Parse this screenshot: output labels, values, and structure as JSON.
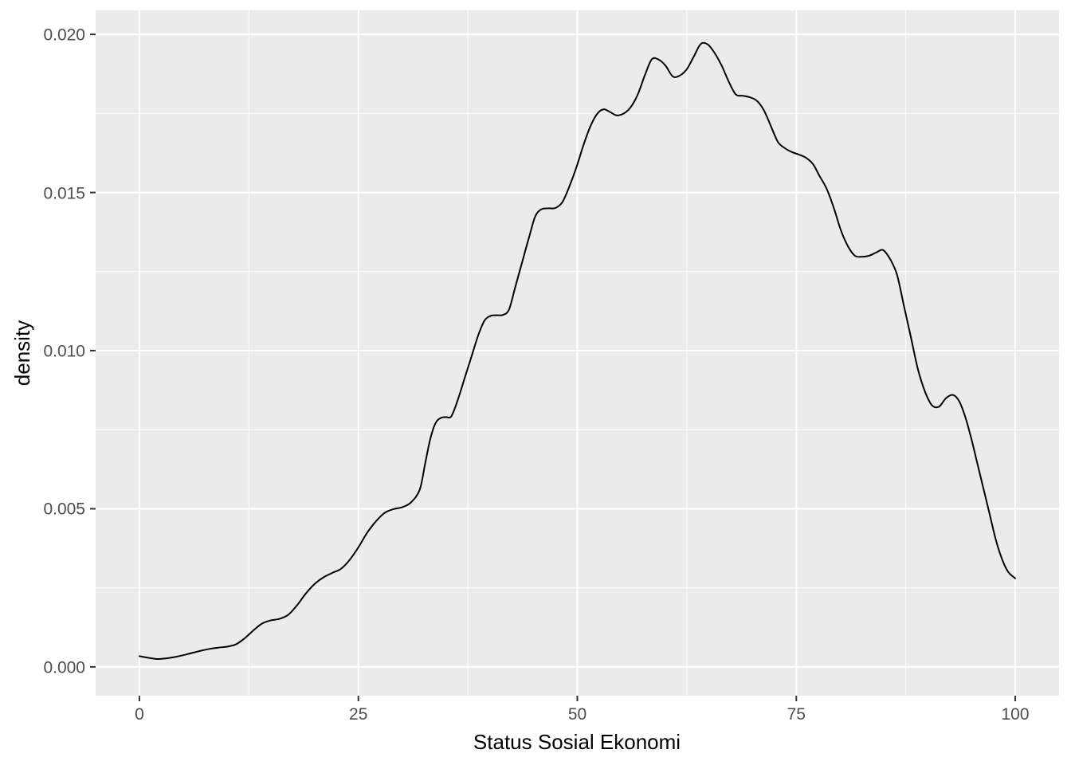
{
  "figure": {
    "xlabel": "Status Sosial Ekonomi",
    "ylabel": "density"
  },
  "chart_data": {
    "type": "line",
    "title": "",
    "xlabel": "Status Sosial Ekonomi",
    "ylabel": "density",
    "legend": "none",
    "grid": "major+minor",
    "xlim": [
      -5,
      105
    ],
    "ylim": [
      -0.00091,
      0.02076
    ],
    "x_ticks": [
      0,
      25,
      50,
      75,
      100
    ],
    "x_tick_labels": [
      "0",
      "25",
      "50",
      "75",
      "100"
    ],
    "x_minor_ticks": [
      12.5,
      37.5,
      62.5,
      87.5
    ],
    "y_ticks": [
      0,
      0.005,
      0.01,
      0.015,
      0.02
    ],
    "y_tick_labels": [
      "0.000",
      "0.005",
      "0.010",
      "0.015",
      "0.020"
    ],
    "y_minor_ticks": [
      0.0025,
      0.0075,
      0.0125,
      0.0175
    ],
    "style": {
      "panel_bg": "#EBEBEB",
      "grid_color": "#FFFFFF",
      "line_color": "#000000",
      "tick_label_color": "#4D4D4D",
      "axis_title_color": "#000000",
      "tick_mark_color": "#333333",
      "outer_bg": "#FFFFFF"
    },
    "points": [
      [
        0,
        0.00034
      ],
      [
        1,
        0.00029
      ],
      [
        2,
        0.00025
      ],
      [
        3,
        0.00027
      ],
      [
        4,
        0.00031
      ],
      [
        5,
        0.00037
      ],
      [
        6,
        0.00044
      ],
      [
        7,
        0.00051
      ],
      [
        8,
        0.00057
      ],
      [
        9,
        0.00061
      ],
      [
        10,
        0.00064
      ],
      [
        11,
        0.00071
      ],
      [
        12,
        0.0009
      ],
      [
        13,
        0.00115
      ],
      [
        14,
        0.00137
      ],
      [
        15,
        0.00147
      ],
      [
        16,
        0.00152
      ],
      [
        17,
        0.00165
      ],
      [
        18,
        0.00195
      ],
      [
        19,
        0.00232
      ],
      [
        20,
        0.00262
      ],
      [
        21,
        0.00283
      ],
      [
        22,
        0.00297
      ],
      [
        23,
        0.0031
      ],
      [
        24,
        0.00338
      ],
      [
        25,
        0.00378
      ],
      [
        26,
        0.00424
      ],
      [
        27,
        0.0046
      ],
      [
        28,
        0.00487
      ],
      [
        29,
        0.00499
      ],
      [
        30,
        0.00505
      ],
      [
        31,
        0.0052
      ],
      [
        32,
        0.0056
      ],
      [
        32.6,
        0.0064
      ],
      [
        33.2,
        0.0072
      ],
      [
        33.8,
        0.0077
      ],
      [
        34.4,
        0.00787
      ],
      [
        35,
        0.0079
      ],
      [
        35.6,
        0.00792
      ],
      [
        36.3,
        0.0084
      ],
      [
        37.1,
        0.0091
      ],
      [
        37.9,
        0.0098
      ],
      [
        38.7,
        0.0105
      ],
      [
        39.4,
        0.01095
      ],
      [
        40.1,
        0.0111
      ],
      [
        40.8,
        0.01112
      ],
      [
        41.5,
        0.01113
      ],
      [
        42.2,
        0.0113
      ],
      [
        42.9,
        0.012
      ],
      [
        43.7,
        0.0128
      ],
      [
        44.5,
        0.0136
      ],
      [
        45.2,
        0.01425
      ],
      [
        45.9,
        0.01447
      ],
      [
        46.7,
        0.0145
      ],
      [
        47.5,
        0.01451
      ],
      [
        48.3,
        0.0147
      ],
      [
        49.1,
        0.0152
      ],
      [
        49.9,
        0.0158
      ],
      [
        50.7,
        0.0165
      ],
      [
        51.5,
        0.0171
      ],
      [
        52.3,
        0.0175
      ],
      [
        53,
        0.01763
      ],
      [
        53.7,
        0.01755
      ],
      [
        54.5,
        0.01744
      ],
      [
        55.3,
        0.0175
      ],
      [
        56.1,
        0.0177
      ],
      [
        56.9,
        0.0181
      ],
      [
        57.7,
        0.0187
      ],
      [
        58.5,
        0.01921
      ],
      [
        59.3,
        0.0192
      ],
      [
        60.1,
        0.019
      ],
      [
        60.9,
        0.01867
      ],
      [
        61.7,
        0.0187
      ],
      [
        62.5,
        0.0189
      ],
      [
        63.3,
        0.0193
      ],
      [
        64.1,
        0.0197
      ],
      [
        64.9,
        0.01968
      ],
      [
        65.7,
        0.0194
      ],
      [
        66.5,
        0.019
      ],
      [
        67.3,
        0.0185
      ],
      [
        68.1,
        0.0181
      ],
      [
        68.9,
        0.01806
      ],
      [
        69.7,
        0.01801
      ],
      [
        70.5,
        0.0179
      ],
      [
        71.3,
        0.0176
      ],
      [
        72.1,
        0.0171
      ],
      [
        72.9,
        0.0166
      ],
      [
        73.7,
        0.0164
      ],
      [
        74.5,
        0.01628
      ],
      [
        75.3,
        0.0162
      ],
      [
        76.1,
        0.0161
      ],
      [
        76.9,
        0.0159
      ],
      [
        77.7,
        0.0155
      ],
      [
        78.5,
        0.0151
      ],
      [
        79.3,
        0.0145
      ],
      [
        80.1,
        0.0138
      ],
      [
        80.9,
        0.0133
      ],
      [
        81.7,
        0.013
      ],
      [
        82.5,
        0.01297
      ],
      [
        83.3,
        0.013
      ],
      [
        84.1,
        0.0131
      ],
      [
        84.9,
        0.01318
      ],
      [
        85.7,
        0.0129
      ],
      [
        86.5,
        0.0124
      ],
      [
        87.3,
        0.0114
      ],
      [
        88.1,
        0.0104
      ],
      [
        88.9,
        0.0094
      ],
      [
        89.7,
        0.0087
      ],
      [
        90.5,
        0.00827
      ],
      [
        91.3,
        0.00823
      ],
      [
        92.1,
        0.0085
      ],
      [
        92.9,
        0.0086
      ],
      [
        93.6,
        0.0084
      ],
      [
        94.3,
        0.0079
      ],
      [
        95,
        0.0072
      ],
      [
        95.7,
        0.0064
      ],
      [
        96.4,
        0.0056
      ],
      [
        97.1,
        0.0048
      ],
      [
        97.8,
        0.004
      ],
      [
        98.5,
        0.0034
      ],
      [
        99.2,
        0.003
      ],
      [
        100,
        0.0028
      ]
    ]
  }
}
